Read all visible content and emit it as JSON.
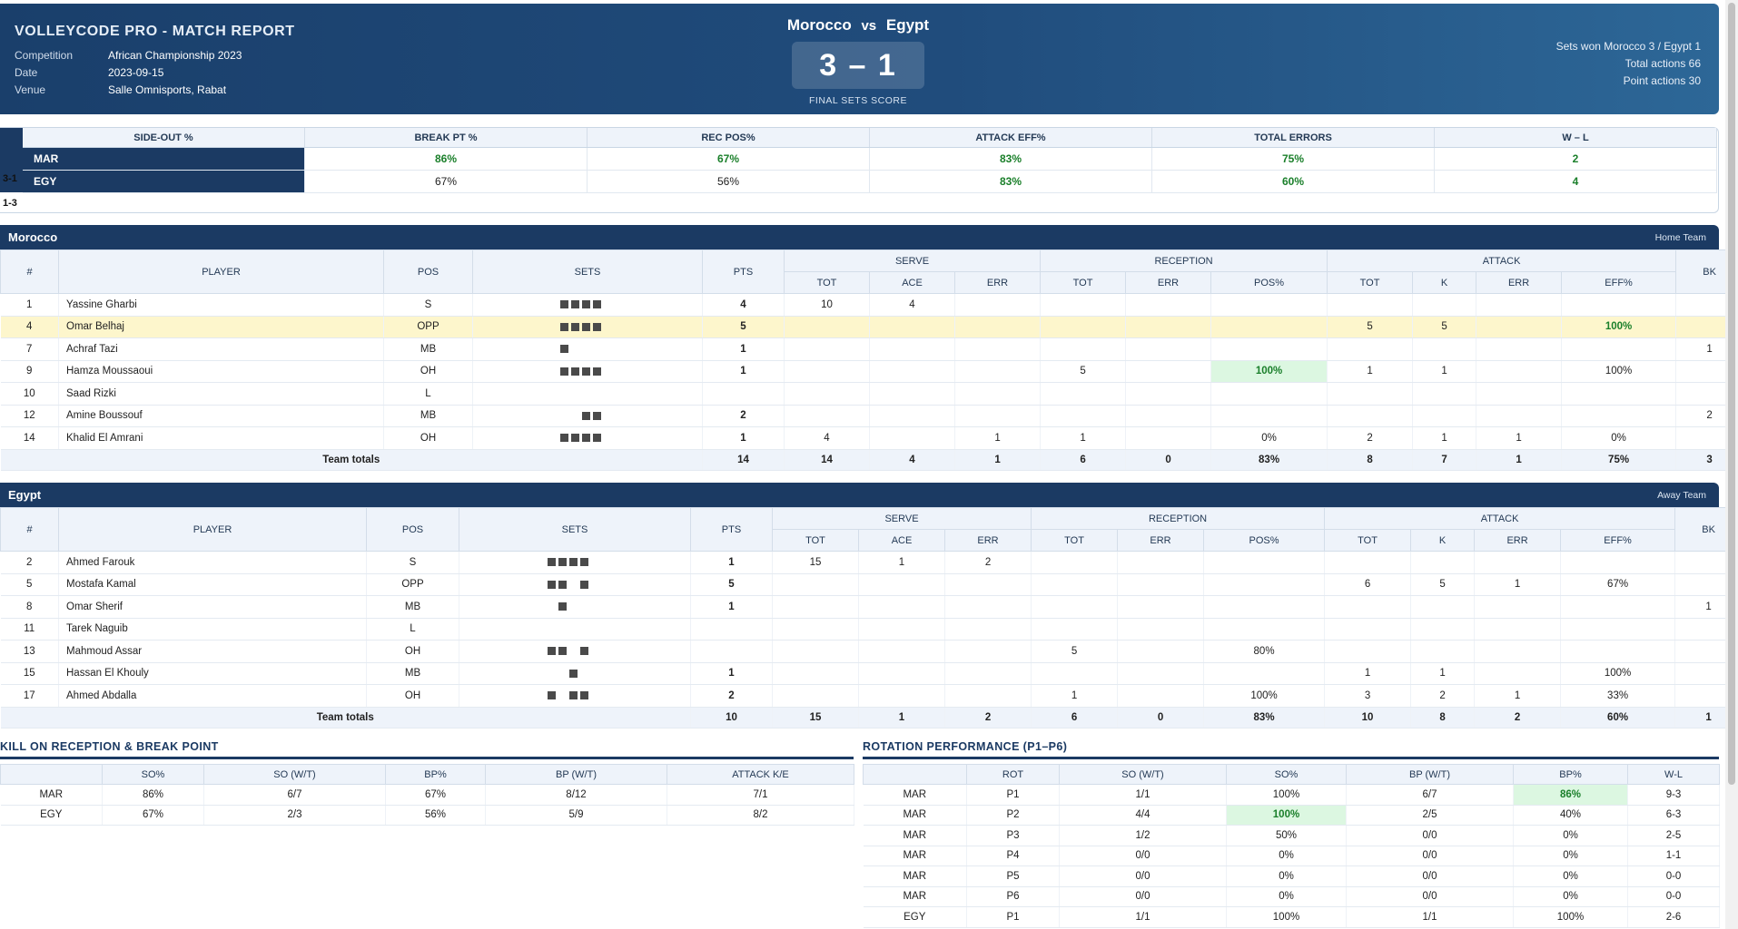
{
  "header": {
    "brand": "VOLLEYCODE PRO - MATCH REPORT",
    "meta": [
      {
        "k": "Competition",
        "v": "African Championship 2023"
      },
      {
        "k": "Date",
        "v": "2023-09-15"
      },
      {
        "k": "Venue",
        "v": "Salle Omnisports, Rabat"
      }
    ],
    "home": "Morocco",
    "vs": "vs",
    "away": "Egypt",
    "score": "3 – 1",
    "score_caption": "FINAL SETS SCORE",
    "summary": [
      "Sets won Morocco 3 / Egypt 1",
      "Total actions 66",
      "Point actions 30"
    ]
  },
  "kpi": {
    "side_labels": [
      "3-1",
      "1-3"
    ],
    "headers": [
      "SIDE-OUT %",
      "BREAK PT %",
      "REC POS%",
      "ATTACK EFF%",
      "TOTAL ERRORS",
      "W – L"
    ],
    "rows": [
      {
        "team": "MAR",
        "values": [
          "86%",
          "67%",
          "83%",
          "75%",
          "2"
        ],
        "green": [
          true,
          true,
          true,
          true,
          true
        ]
      },
      {
        "team": "EGY",
        "values": [
          "67%",
          "56%",
          "83%",
          "60%",
          "4"
        ],
        "green": [
          false,
          false,
          true,
          true,
          true
        ]
      }
    ]
  },
  "headers": {
    "group": [
      "SERVE",
      "RECEPTION",
      "ATTACK"
    ],
    "cols": [
      "#",
      "PLAYER",
      "POS",
      "SETS",
      "PTS",
      "TOT",
      "ACE",
      "ERR",
      "TOT",
      "ERR",
      "POS%",
      "TOT",
      "K",
      "ERR",
      "EFF%",
      "BK"
    ]
  },
  "morocco": {
    "name": "Morocco",
    "tag": "Home Team",
    "players": [
      {
        "n": "1",
        "name": "Yassine Gharbi",
        "pos": "S",
        "sets": [
          1,
          1,
          1,
          1
        ],
        "pts": "4",
        "s_tot": "10",
        "s_ace": "4",
        "s_err": "",
        "r_tot": "",
        "r_err": "",
        "r_pos": "",
        "a_tot": "",
        "a_k": "",
        "a_err": "",
        "a_eff": "",
        "bk": ""
      },
      {
        "n": "4",
        "name": "Omar Belhaj",
        "pos": "OPP",
        "sets": [
          1,
          1,
          1,
          1
        ],
        "pts": "5",
        "s_tot": "",
        "s_ace": "",
        "s_err": "",
        "r_tot": "",
        "r_err": "",
        "r_pos": "",
        "a_tot": "5",
        "a_k": "5",
        "a_err": "",
        "a_eff": "100%",
        "bk": ""
      },
      {
        "n": "7",
        "name": "Achraf Tazi",
        "pos": "MB",
        "sets": [
          1,
          0,
          0,
          0
        ],
        "pts": "1",
        "s_tot": "",
        "s_ace": "",
        "s_err": "",
        "r_tot": "",
        "r_err": "",
        "r_pos": "",
        "a_tot": "",
        "a_k": "",
        "a_err": "",
        "a_eff": "",
        "bk": "1"
      },
      {
        "n": "9",
        "name": "Hamza Moussaoui",
        "pos": "OH",
        "sets": [
          1,
          1,
          1,
          1
        ],
        "pts": "1",
        "s_tot": "",
        "s_ace": "",
        "s_err": "",
        "r_tot": "5",
        "r_err": "",
        "r_pos": "100%",
        "a_tot": "1",
        "a_k": "1",
        "a_err": "",
        "a_eff": "100%",
        "bk": ""
      },
      {
        "n": "10",
        "name": "Saad Rizki",
        "pos": "L",
        "sets": [
          0,
          0,
          0,
          0
        ],
        "pts": "",
        "s_tot": "",
        "s_ace": "",
        "s_err": "",
        "r_tot": "",
        "r_err": "",
        "r_pos": "",
        "a_tot": "",
        "a_k": "",
        "a_err": "",
        "a_eff": "",
        "bk": ""
      },
      {
        "n": "12",
        "name": "Amine Boussouf",
        "pos": "MB",
        "sets": [
          0,
          0,
          1,
          1
        ],
        "pts": "2",
        "s_tot": "",
        "s_ace": "",
        "s_err": "",
        "r_tot": "",
        "r_err": "",
        "r_pos": "",
        "a_tot": "",
        "a_k": "",
        "a_err": "",
        "a_eff": "",
        "bk": "2"
      },
      {
        "n": "14",
        "name": "Khalid El Amrani",
        "pos": "OH",
        "sets": [
          1,
          1,
          1,
          1
        ],
        "pts": "1",
        "s_tot": "4",
        "s_ace": "",
        "s_err": "1",
        "r_tot": "1",
        "r_err": "",
        "r_pos": "0%",
        "a_tot": "2",
        "a_k": "1",
        "a_err": "1",
        "a_eff": "0%",
        "bk": ""
      }
    ],
    "totals": {
      "label": "Team totals",
      "values": [
        "14",
        "14",
        "4",
        "1",
        "6",
        "0",
        "83%",
        "8",
        "7",
        "1",
        "75%",
        "3"
      ]
    }
  },
  "egypt": {
    "name": "Egypt",
    "tag": "Away Team",
    "players": [
      {
        "n": "2",
        "name": "Ahmed Farouk",
        "pos": "S",
        "sets": [
          1,
          1,
          1,
          1
        ],
        "pts": "1",
        "s_tot": "15",
        "s_ace": "1",
        "s_err": "2",
        "r_tot": "",
        "r_err": "",
        "r_pos": "",
        "a_tot": "",
        "a_k": "",
        "a_err": "",
        "a_eff": "",
        "bk": ""
      },
      {
        "n": "5",
        "name": "Mostafa Kamal",
        "pos": "OPP",
        "sets": [
          1,
          1,
          0,
          1
        ],
        "pts": "5",
        "s_tot": "",
        "s_ace": "",
        "s_err": "",
        "r_tot": "",
        "r_err": "",
        "r_pos": "",
        "a_tot": "6",
        "a_k": "5",
        "a_err": "1",
        "a_eff": "67%",
        "bk": ""
      },
      {
        "n": "8",
        "name": "Omar Sherif",
        "pos": "MB",
        "sets": [
          0,
          1,
          0,
          0
        ],
        "pts": "1",
        "s_tot": "",
        "s_ace": "",
        "s_err": "",
        "r_tot": "",
        "r_err": "",
        "r_pos": "",
        "a_tot": "",
        "a_k": "",
        "a_err": "",
        "a_eff": "",
        "bk": "1"
      },
      {
        "n": "11",
        "name": "Tarek Naguib",
        "pos": "L",
        "sets": [
          0,
          0,
          0,
          0
        ],
        "pts": "",
        "s_tot": "",
        "s_ace": "",
        "s_err": "",
        "r_tot": "",
        "r_err": "",
        "r_pos": "",
        "a_tot": "",
        "a_k": "",
        "a_err": "",
        "a_eff": "",
        "bk": ""
      },
      {
        "n": "13",
        "name": "Mahmoud Assar",
        "pos": "OH",
        "sets": [
          1,
          1,
          0,
          1
        ],
        "pts": "",
        "s_tot": "",
        "s_ace": "",
        "s_err": "",
        "r_tot": "5",
        "r_err": "",
        "r_pos": "80%",
        "a_tot": "",
        "a_k": "",
        "a_err": "",
        "a_eff": "",
        "bk": ""
      },
      {
        "n": "15",
        "name": "Hassan El Khouly",
        "pos": "MB",
        "sets": [
          0,
          0,
          1,
          0
        ],
        "pts": "1",
        "s_tot": "",
        "s_ace": "",
        "s_err": "",
        "r_tot": "",
        "r_err": "",
        "r_pos": "",
        "a_tot": "1",
        "a_k": "1",
        "a_err": "",
        "a_eff": "100%",
        "bk": ""
      },
      {
        "n": "17",
        "name": "Ahmed Abdalla",
        "pos": "OH",
        "sets": [
          1,
          0,
          1,
          1
        ],
        "pts": "2",
        "s_tot": "",
        "s_ace": "",
        "s_err": "",
        "r_tot": "1",
        "r_err": "",
        "r_pos": "100%",
        "a_tot": "3",
        "a_k": "2",
        "a_err": "1",
        "a_eff": "33%",
        "bk": ""
      }
    ],
    "totals": {
      "label": "Team totals",
      "values": [
        "10",
        "15",
        "1",
        "2",
        "6",
        "0",
        "83%",
        "10",
        "8",
        "2",
        "60%",
        "1"
      ]
    }
  },
  "kill_table": {
    "title": "KILL ON RECEPTION & BREAK POINT",
    "headers": [
      "",
      "SO%",
      "SO (W/T)",
      "BP%",
      "BP (W/T)",
      "ATTACK K/E"
    ],
    "rows": [
      [
        "MAR",
        "86%",
        "6/7",
        "67%",
        "8/12",
        "7/1"
      ],
      [
        "EGY",
        "67%",
        "2/3",
        "56%",
        "5/9",
        "8/2"
      ]
    ]
  },
  "rotation": {
    "title": "ROTATION PERFORMANCE (P1–P6)",
    "headers": [
      "",
      "ROT",
      "SO (W/T)",
      "SO%",
      "BP (W/T)",
      "BP%",
      "W-L"
    ],
    "rows": [
      {
        "c": [
          "MAR",
          "P1",
          "1/1",
          "100%",
          "6/7",
          "86%",
          "9-3"
        ],
        "hl": 5
      },
      {
        "c": [
          "MAR",
          "P2",
          "4/4",
          "100%",
          "2/5",
          "40%",
          "6-3"
        ],
        "hl": 3
      },
      {
        "c": [
          "MAR",
          "P3",
          "1/2",
          "50%",
          "0/0",
          "0%",
          "2-5"
        ],
        "hl": -1
      },
      {
        "c": [
          "MAR",
          "P4",
          "0/0",
          "0%",
          "0/0",
          "0%",
          "1-1"
        ],
        "hl": -1
      },
      {
        "c": [
          "MAR",
          "P5",
          "0/0",
          "0%",
          "0/0",
          "0%",
          "0-0"
        ],
        "hl": -1
      },
      {
        "c": [
          "MAR",
          "P6",
          "0/0",
          "0%",
          "0/0",
          "0%",
          "0-0"
        ],
        "hl": -1
      },
      {
        "c": [
          "EGY",
          "P1",
          "1/1",
          "100%",
          "1/1",
          "100%",
          "2-6"
        ],
        "hl": -1
      }
    ]
  }
}
